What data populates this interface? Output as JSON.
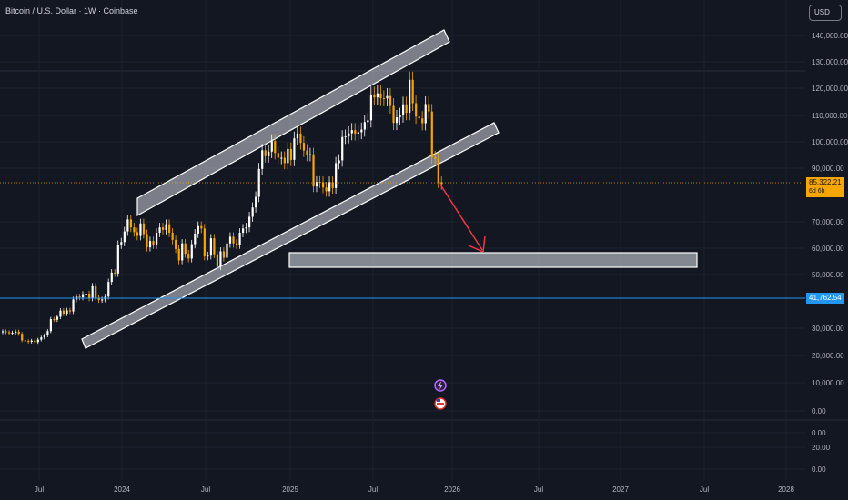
{
  "header": {
    "symbol_title": "Bitcoin / U.S. Dollar · 1W · Coinbase",
    "currency_button": "USD"
  },
  "price_tags": {
    "current_price": "85,322.21",
    "countdown": "6d 6h",
    "horizontal_level": "41,762.54"
  },
  "colors": {
    "background": "#131722",
    "grid": "#1e222d",
    "up_candle": "#ffffff",
    "down_candle": "#f7a600",
    "current_price_line": "#f7a600",
    "level_line": "#2196f3",
    "arrow": "#f23645",
    "channel_fill": "#d1d4dc"
  },
  "chart_data": {
    "type": "candlestick",
    "symbol": "Bitcoin / U.S. Dollar",
    "interval": "1W",
    "exchange": "Coinbase",
    "y_axis_ticks_main": [
      "140,000.00",
      "130,000.00",
      "120,000.00",
      "110,000.00",
      "100,000.00",
      "90,000.00",
      "70,000.00",
      "60,000.00",
      "50,000.00",
      "30,000.00",
      "20,000.00",
      "10,000.00",
      "0.00"
    ],
    "y_axis_ticks_lower": [
      "0.00",
      "20.00",
      "0.00"
    ],
    "x_axis_ticks": [
      "Jul",
      "2024",
      "Jul",
      "2025",
      "Jul",
      "2026",
      "Jul",
      "2027",
      "Jul",
      "2028"
    ],
    "current_price": 85322.21,
    "horizontal_level": 41762.54,
    "weekly_closes_approx": [
      29900,
      29600,
      29200,
      29400,
      29800,
      29000,
      26500,
      26300,
      26000,
      26400,
      25900,
      26800,
      27600,
      28400,
      30000,
      34500,
      34300,
      35400,
      37700,
      36600,
      37800,
      37400,
      41900,
      43000,
      42700,
      43900,
      44100,
      42300,
      46900,
      42600,
      41700,
      41900,
      43000,
      48500,
      52000,
      51700,
      62500,
      63500,
      67500,
      72000,
      69000,
      67200,
      65800,
      70500,
      66500,
      61500,
      63900,
      62500,
      67000,
      69000,
      68100,
      70200,
      67000,
      64300,
      60900,
      56600,
      63000,
      59100,
      57300,
      62700,
      66700,
      69500,
      68600,
      58100,
      58400,
      64900,
      58900,
      54300,
      60000,
      57600,
      63000,
      65500,
      63000,
      62500,
      67000,
      68600,
      69000,
      73000,
      76500,
      80500,
      91000,
      98000,
      95800,
      97500,
      101500,
      97000,
      95200,
      95200,
      93200,
      98500,
      94400,
      102500,
      104300,
      100800,
      97900,
      96300,
      96500,
      84400,
      86100,
      86000,
      84000,
      82600,
      86000,
      83800,
      93200,
      94200,
      103000,
      103200,
      104400,
      105600,
      104300,
      104800,
      105800,
      108600,
      109300,
      119000,
      117900,
      119400,
      117600,
      117500,
      118400,
      114700,
      108300,
      110400,
      111200,
      115300,
      112100,
      124500,
      115700,
      110700,
      110000,
      108200,
      115400,
      112600,
      95400,
      94800,
      86000,
      85322
    ]
  },
  "annotations": {
    "upper_channel_band": "parallel rising channel (upper)",
    "lower_channel_band": "parallel rising channel (lower)",
    "target_zone": "horizontal support zone",
    "projection_arrow": "downward projection"
  }
}
